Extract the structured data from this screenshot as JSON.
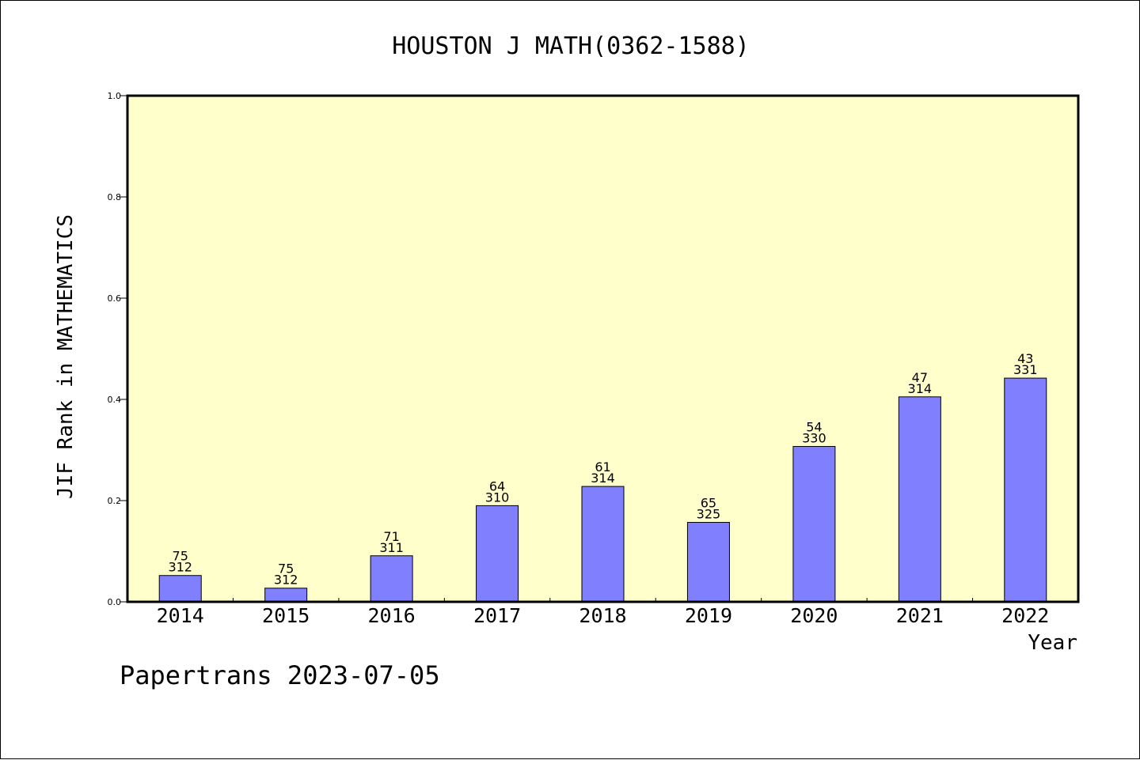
{
  "chart_data": {
    "type": "bar",
    "title": "HOUSTON J MATH(0362-1588)",
    "xlabel": "Year",
    "ylabel": "JIF Rank in MATHEMATICS",
    "ylim": [
      0,
      1.0
    ],
    "yticks": [
      "0.0",
      "0.2",
      "0.4",
      "0.6",
      "0.8",
      "1.0"
    ],
    "categories": [
      "2014",
      "2015",
      "2016",
      "2017",
      "2018",
      "2019",
      "2020",
      "2021",
      "2022"
    ],
    "values": [
      0.052,
      0.027,
      0.091,
      0.19,
      0.228,
      0.157,
      0.307,
      0.405,
      0.442
    ],
    "labels_top": [
      "75",
      "75",
      "71",
      "64",
      "61",
      "65",
      "54",
      "47",
      "43"
    ],
    "labels_bottom": [
      "312",
      "312",
      "311",
      "310",
      "314",
      "325",
      "330",
      "314",
      "331"
    ],
    "grid": false,
    "colors": {
      "bar": "#8080ff",
      "plot_background": "#ffffcc"
    }
  },
  "footer": {
    "text": "Papertrans 2023-07-05"
  }
}
